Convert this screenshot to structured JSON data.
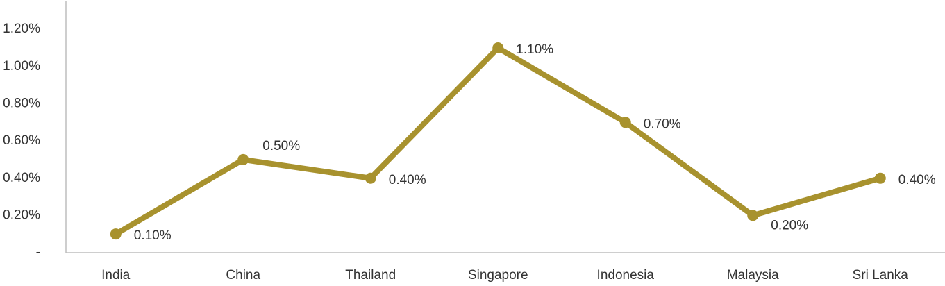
{
  "chart_data": {
    "type": "line",
    "categories": [
      "India",
      "China",
      "Thailand",
      "Singapore",
      "Indonesia",
      "Malaysia",
      "Sri Lanka"
    ],
    "values": [
      0.1,
      0.5,
      0.4,
      1.1,
      0.7,
      0.2,
      0.4
    ],
    "value_labels": [
      "0.10%",
      "0.50%",
      "0.40%",
      "1.10%",
      "0.70%",
      "0.20%",
      "0.40%"
    ],
    "color": "#a8922e",
    "ylim": [
      0,
      1.35
    ],
    "yticks": [
      {
        "value": 0,
        "label": "-"
      },
      {
        "value": 0.2,
        "label": "0.20%"
      },
      {
        "value": 0.4,
        "label": "0.40%"
      },
      {
        "value": 0.6,
        "label": "0.60%"
      },
      {
        "value": 0.8,
        "label": "0.80%"
      },
      {
        "value": 1.0,
        "label": "1.00%"
      },
      {
        "value": 1.2,
        "label": "1.20%"
      }
    ],
    "grid": false
  }
}
